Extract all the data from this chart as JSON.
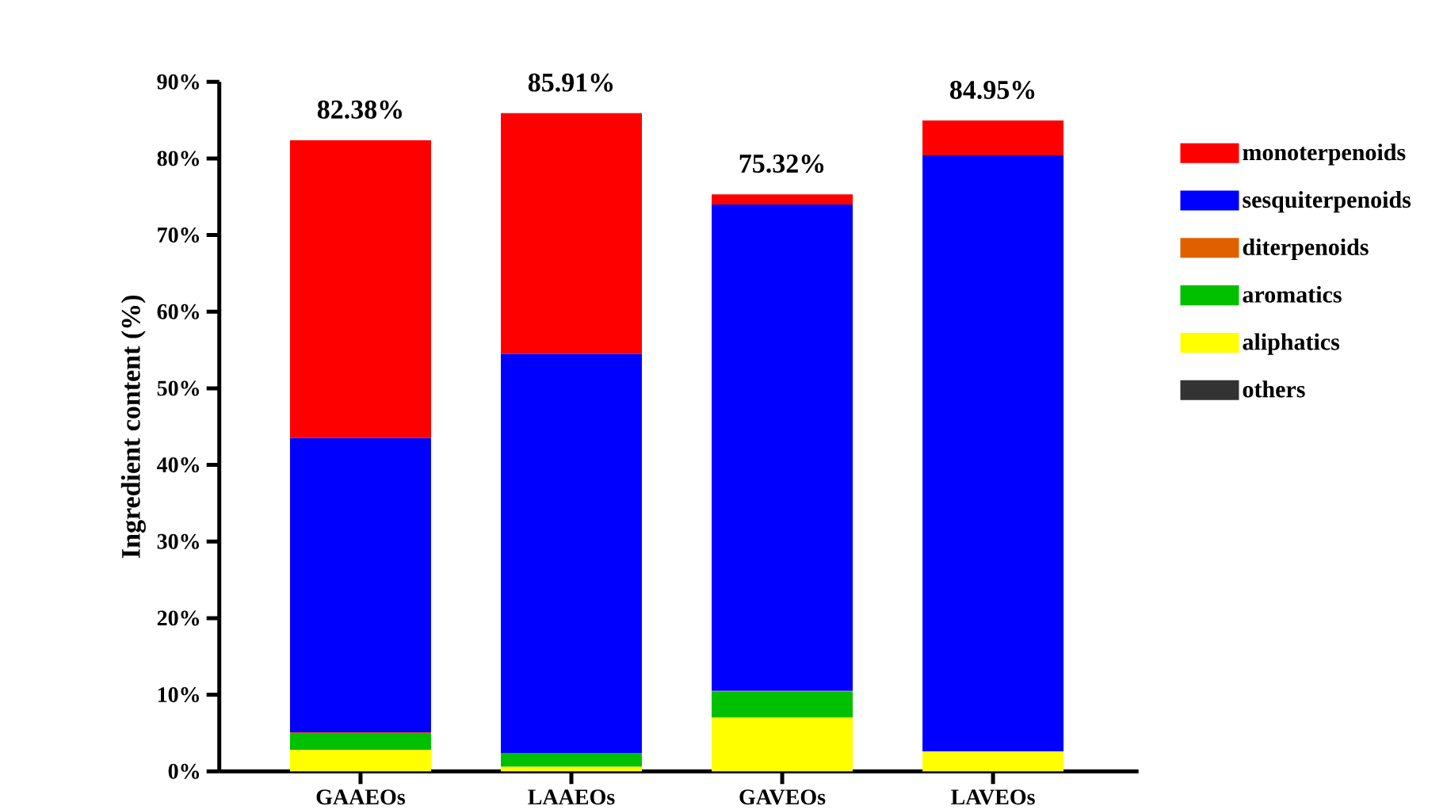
{
  "chart_data": {
    "type": "bar",
    "stacked": true,
    "ylabel": "Ingredient content (%)",
    "categories": [
      "GAAEOs",
      "LAAEOs",
      "GAVEOs",
      "LAVEOs"
    ],
    "series": [
      {
        "name": "others",
        "color": "#333333",
        "values": [
          0,
          0,
          0,
          0
        ]
      },
      {
        "name": "aliphatics",
        "color": "#ffff00",
        "values": [
          2.8,
          0.6,
          7.0,
          2.6
        ]
      },
      {
        "name": "aromatics",
        "color": "#00c000",
        "values": [
          2.2,
          1.8,
          3.4,
          0
        ]
      },
      {
        "name": "diterpenoids",
        "color": "#e06000",
        "values": [
          0.1,
          0,
          0.1,
          0
        ]
      },
      {
        "name": "sesquiterpenoids",
        "color": "#0000ff",
        "values": [
          38.4,
          52.1,
          63.5,
          77.8
        ]
      },
      {
        "name": "monoterpenoids",
        "color": "#ff0000",
        "values": [
          38.88,
          31.41,
          1.32,
          4.55
        ]
      }
    ],
    "ylim": [
      0,
      90
    ],
    "yticks": [
      {
        "value": 0,
        "label": "0%"
      },
      {
        "value": 10,
        "label": "10%"
      },
      {
        "value": 20,
        "label": "20%"
      },
      {
        "value": 30,
        "label": "30%"
      },
      {
        "value": 40,
        "label": "40%"
      },
      {
        "value": 50,
        "label": "50%"
      },
      {
        "value": 60,
        "label": "60%"
      },
      {
        "value": 70,
        "label": "70%"
      },
      {
        "value": 80,
        "label": "80%"
      },
      {
        "value": 90,
        "label": "90%"
      }
    ],
    "totals": [
      "82.38%",
      "85.91%",
      "75.32%",
      "84.95%"
    ],
    "legend": "right",
    "grid": false
  }
}
